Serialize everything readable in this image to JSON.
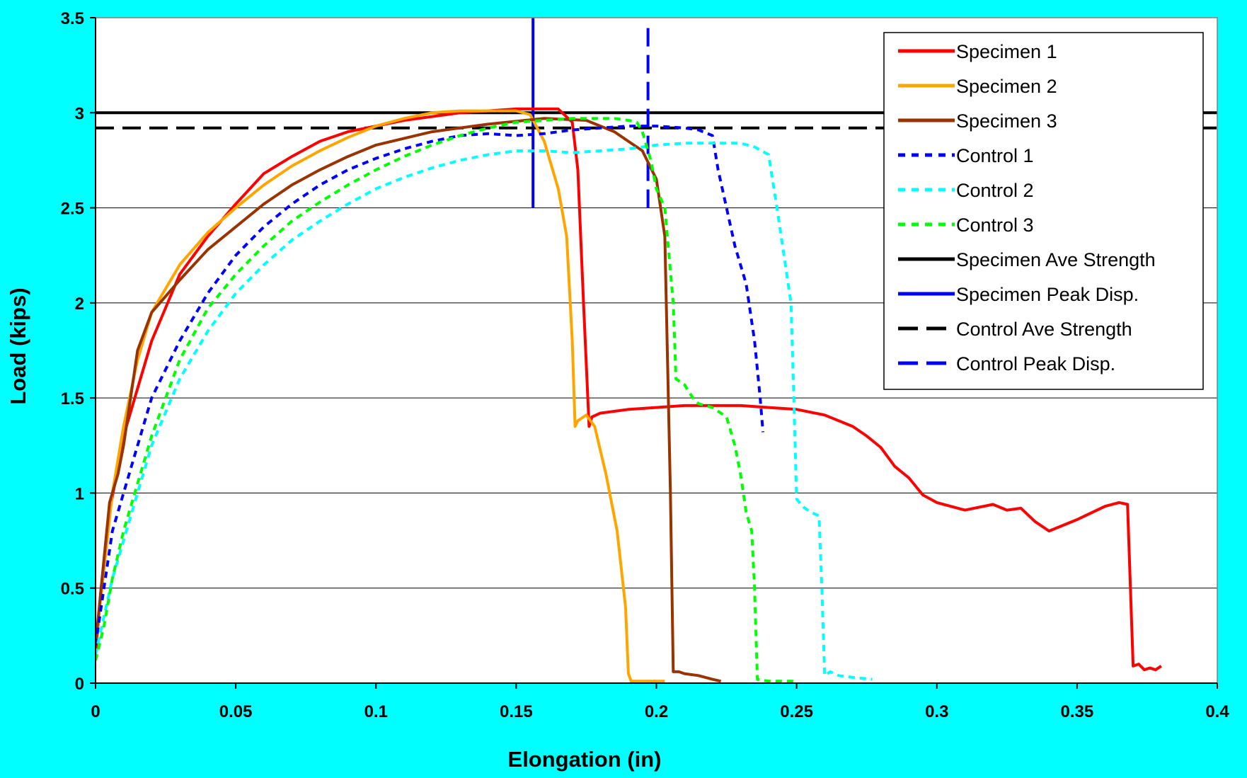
{
  "chart_data": {
    "type": "line",
    "title": "",
    "xlabel": "Elongation (in)",
    "ylabel": "Load (kips)",
    "xlim": [
      0,
      0.4
    ],
    "ylim": [
      0,
      3.5
    ],
    "x_ticks": [
      "0",
      "0.05",
      "0.1",
      "0.15",
      "0.2",
      "0.25",
      "0.3",
      "0.35",
      "0.4"
    ],
    "y_ticks": [
      "0",
      "0.5",
      "1",
      "1.5",
      "2",
      "2.5",
      "3",
      "3.5"
    ],
    "grid": "horizontal",
    "legend_position": "top-right",
    "background": "#00ffff",
    "plot_background": "#ffffff",
    "series": [
      {
        "name": "Specimen 1",
        "color": "#ff0000",
        "dash": "solid",
        "x": [
          0,
          0.002,
          0.005,
          0.01,
          0.015,
          0.02,
          0.03,
          0.04,
          0.05,
          0.06,
          0.07,
          0.08,
          0.09,
          0.1,
          0.11,
          0.12,
          0.13,
          0.14,
          0.15,
          0.16,
          0.165,
          0.17,
          0.172,
          0.174,
          0.176,
          0.177,
          0.18,
          0.19,
          0.2,
          0.21,
          0.22,
          0.23,
          0.24,
          0.25,
          0.26,
          0.27,
          0.275,
          0.28,
          0.285,
          0.29,
          0.295,
          0.3,
          0.31,
          0.32,
          0.325,
          0.33,
          0.335,
          0.34,
          0.35,
          0.36,
          0.365,
          0.368,
          0.37,
          0.372,
          0.374,
          0.376,
          0.378,
          0.38
        ],
        "y": [
          0.15,
          0.5,
          0.9,
          1.3,
          1.55,
          1.8,
          2.15,
          2.35,
          2.52,
          2.68,
          2.77,
          2.85,
          2.9,
          2.93,
          2.96,
          2.98,
          3.0,
          3.01,
          3.02,
          3.02,
          3.02,
          2.95,
          2.7,
          2.0,
          1.35,
          1.4,
          1.42,
          1.44,
          1.45,
          1.46,
          1.46,
          1.46,
          1.45,
          1.44,
          1.41,
          1.35,
          1.3,
          1.24,
          1.14,
          1.08,
          0.99,
          0.95,
          0.91,
          0.94,
          0.91,
          0.92,
          0.85,
          0.8,
          0.86,
          0.93,
          0.95,
          0.94,
          0.09,
          0.1,
          0.07,
          0.08,
          0.07,
          0.09
        ]
      },
      {
        "name": "Specimen 2",
        "color": "#ffa500",
        "dash": "solid",
        "x": [
          0,
          0.003,
          0.006,
          0.01,
          0.015,
          0.02,
          0.03,
          0.04,
          0.05,
          0.06,
          0.07,
          0.08,
          0.09,
          0.1,
          0.11,
          0.12,
          0.13,
          0.14,
          0.15,
          0.155,
          0.16,
          0.165,
          0.168,
          0.17,
          0.171,
          0.172,
          0.175,
          0.178,
          0.182,
          0.186,
          0.189,
          0.19,
          0.191,
          0.195,
          0.2,
          0.203
        ],
        "y": [
          0.2,
          0.6,
          1.0,
          1.35,
          1.7,
          1.95,
          2.2,
          2.37,
          2.5,
          2.62,
          2.72,
          2.8,
          2.87,
          2.93,
          2.97,
          3.0,
          3.01,
          3.01,
          3.01,
          2.99,
          2.85,
          2.6,
          2.35,
          1.8,
          1.35,
          1.38,
          1.41,
          1.35,
          1.1,
          0.8,
          0.4,
          0.05,
          0.01,
          0.01,
          0.01,
          0.01
        ]
      },
      {
        "name": "Specimen 3",
        "color": "#993300",
        "dash": "solid",
        "x": [
          0,
          0.002,
          0.005,
          0.008,
          0.01,
          0.015,
          0.02,
          0.03,
          0.04,
          0.05,
          0.06,
          0.07,
          0.08,
          0.09,
          0.1,
          0.12,
          0.14,
          0.16,
          0.175,
          0.185,
          0.19,
          0.195,
          0.2,
          0.203,
          0.205,
          0.206,
          0.208,
          0.21,
          0.215,
          0.22,
          0.223
        ],
        "y": [
          0.2,
          0.5,
          0.95,
          1.1,
          1.25,
          1.75,
          1.95,
          2.12,
          2.28,
          2.4,
          2.52,
          2.62,
          2.7,
          2.77,
          2.83,
          2.9,
          2.94,
          2.97,
          2.96,
          2.9,
          2.85,
          2.8,
          2.65,
          2.35,
          1.0,
          0.06,
          0.06,
          0.05,
          0.04,
          0.02,
          0.01
        ]
      },
      {
        "name": "Control 1",
        "color": "#0000ff",
        "dash": "dot",
        "x": [
          0,
          0.003,
          0.006,
          0.01,
          0.015,
          0.02,
          0.03,
          0.04,
          0.05,
          0.06,
          0.07,
          0.08,
          0.09,
          0.1,
          0.11,
          0.12,
          0.13,
          0.14,
          0.15,
          0.16,
          0.17,
          0.18,
          0.19,
          0.2,
          0.21,
          0.215,
          0.22,
          0.222,
          0.225,
          0.228,
          0.232,
          0.235,
          0.237,
          0.238
        ],
        "y": [
          0.2,
          0.5,
          0.8,
          1.0,
          1.25,
          1.5,
          1.8,
          2.05,
          2.25,
          2.4,
          2.52,
          2.62,
          2.7,
          2.76,
          2.81,
          2.85,
          2.88,
          2.89,
          2.88,
          2.89,
          2.91,
          2.92,
          2.93,
          2.93,
          2.92,
          2.91,
          2.88,
          2.7,
          2.5,
          2.3,
          2.1,
          1.8,
          1.5,
          1.32
        ]
      },
      {
        "name": "Control 2",
        "color": "#00ffff",
        "dash": "dot",
        "x": [
          0,
          0.003,
          0.006,
          0.01,
          0.015,
          0.02,
          0.03,
          0.04,
          0.05,
          0.06,
          0.07,
          0.08,
          0.09,
          0.1,
          0.11,
          0.12,
          0.13,
          0.14,
          0.15,
          0.16,
          0.17,
          0.18,
          0.19,
          0.2,
          0.21,
          0.22,
          0.23,
          0.235,
          0.24,
          0.243,
          0.245,
          0.248,
          0.249,
          0.25,
          0.252,
          0.255,
          0.258,
          0.259,
          0.26,
          0.262,
          0.265,
          0.27,
          0.277
        ],
        "y": [
          0.15,
          0.35,
          0.55,
          0.75,
          1.0,
          1.25,
          1.6,
          1.85,
          2.05,
          2.2,
          2.33,
          2.43,
          2.52,
          2.6,
          2.66,
          2.71,
          2.75,
          2.78,
          2.8,
          2.8,
          2.79,
          2.8,
          2.81,
          2.83,
          2.84,
          2.84,
          2.84,
          2.82,
          2.78,
          2.5,
          2.3,
          2.0,
          1.5,
          0.97,
          0.93,
          0.9,
          0.88,
          0.5,
          0.04,
          0.06,
          0.04,
          0.03,
          0.02
        ]
      },
      {
        "name": "Control 3",
        "color": "#00ff00",
        "dash": "dot",
        "x": [
          0,
          0.003,
          0.006,
          0.01,
          0.015,
          0.02,
          0.03,
          0.04,
          0.05,
          0.06,
          0.07,
          0.08,
          0.09,
          0.1,
          0.11,
          0.12,
          0.13,
          0.14,
          0.15,
          0.16,
          0.17,
          0.18,
          0.185,
          0.19,
          0.193,
          0.195,
          0.198,
          0.2,
          0.203,
          0.206,
          0.207,
          0.21,
          0.213,
          0.215,
          0.22,
          0.225,
          0.228,
          0.23,
          0.232,
          0.234,
          0.235,
          0.236,
          0.24,
          0.25
        ],
        "y": [
          0.12,
          0.3,
          0.55,
          0.8,
          1.05,
          1.3,
          1.7,
          1.97,
          2.15,
          2.3,
          2.43,
          2.53,
          2.62,
          2.7,
          2.77,
          2.83,
          2.88,
          2.92,
          2.95,
          2.96,
          2.97,
          2.97,
          2.97,
          2.96,
          2.95,
          2.9,
          2.75,
          2.6,
          2.5,
          2.0,
          1.6,
          1.57,
          1.5,
          1.47,
          1.45,
          1.4,
          1.25,
          1.1,
          0.9,
          0.8,
          0.5,
          0.02,
          0.01,
          0.01
        ]
      }
    ],
    "reference_lines": [
      {
        "name": "Specimen Ave Strength",
        "orientation": "horizontal",
        "value": 3.0,
        "color": "#000000",
        "dash": "solid"
      },
      {
        "name": "Specimen Peak Disp.",
        "orientation": "vertical",
        "value": 0.156,
        "range": [
          2.5,
          3.5
        ],
        "color": "#0000ff",
        "dash": "solid"
      },
      {
        "name": "Control Ave Strength",
        "orientation": "horizontal",
        "value": 2.92,
        "color": "#000000",
        "dash": "dash"
      },
      {
        "name": "Control Peak Disp.",
        "orientation": "vertical",
        "value": 0.197,
        "range": [
          2.5,
          3.45
        ],
        "color": "#0000ff",
        "dash": "dash"
      }
    ]
  }
}
